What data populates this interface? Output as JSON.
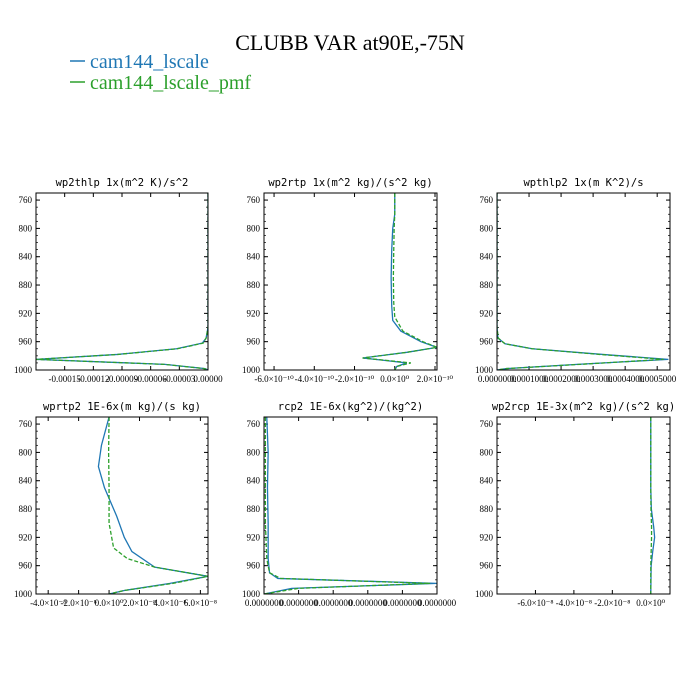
{
  "title": "CLUBB VAR at90E,-75N",
  "legend": [
    {
      "label": "cam144_lscale",
      "color": "#1f77b4"
    },
    {
      "label": "cam144_lscale_pmf",
      "color": "#2ca02c"
    }
  ],
  "chart_data": [
    {
      "type": "line",
      "title": "wp2thlp   1x(m^2 K)/s^2",
      "xlim": [
        -0.00018,
        0.0
      ],
      "xtick_values": [
        -0.00015,
        -0.00012,
        -9e-05,
        -6e-05,
        -3e-05,
        0.0
      ],
      "xtick_labels": [
        "-0.00015",
        "-0.00012",
        "-0.00009",
        "-0.00006",
        "-0.00003",
        "0.00000"
      ],
      "ylim": [
        750,
        1000
      ],
      "yticks": [
        760,
        800,
        840,
        880,
        920,
        960,
        1000
      ],
      "series": [
        {
          "name": "cam144_lscale",
          "points": [
            [
              0,
              750
            ],
            [
              0,
              900
            ],
            [
              0,
              940
            ],
            [
              -2e-06,
              955
            ],
            [
              -6e-06,
              962
            ],
            [
              -3.3e-05,
              970
            ],
            [
              -9.5e-05,
              978
            ],
            [
              -0.00018,
              985
            ],
            [
              -4.5e-05,
              992
            ],
            [
              -3e-06,
              998
            ],
            [
              0,
              1000
            ]
          ]
        },
        {
          "name": "cam144_lscale_pmf",
          "points": [
            [
              0,
              750
            ],
            [
              0,
              900
            ],
            [
              0,
              940
            ],
            [
              -2e-06,
              955
            ],
            [
              -5e-06,
              962
            ],
            [
              -3.2e-05,
              970
            ],
            [
              -9.4e-05,
              978
            ],
            [
              -0.00018,
              985
            ],
            [
              -4.6e-05,
              992
            ],
            [
              -4e-06,
              998
            ],
            [
              0,
              1000
            ]
          ]
        }
      ]
    },
    {
      "type": "line",
      "title": "wp2rtp   1x(m^2 kg)/(s^2 kg)",
      "xlim": [
        -6.5e-10,
        2.1e-10
      ],
      "xtick_values": [
        -6e-10,
        -4e-10,
        -2e-10,
        0,
        2e-10
      ],
      "xtick_labels": [
        "-6.0×10⁻¹⁰",
        "-4.0×10⁻¹⁰",
        "-2.0×10⁻¹⁰",
        "0.0×10⁰",
        "2.0×10⁻¹⁰"
      ],
      "ylim": [
        750,
        1000
      ],
      "yticks": [
        760,
        800,
        840,
        880,
        920,
        960,
        1000
      ],
      "series": [
        {
          "name": "cam144_lscale",
          "points": [
            [
              0,
              750
            ],
            [
              0,
              780
            ],
            [
              -1e-11,
              800
            ],
            [
              -1.5e-11,
              830
            ],
            [
              -1.8e-11,
              870
            ],
            [
              -1.5e-11,
              910
            ],
            [
              -1e-11,
              930
            ],
            [
              3e-11,
              945
            ],
            [
              1.3e-10,
              960
            ],
            [
              2.1e-10,
              968
            ],
            [
              6e-11,
              975
            ],
            [
              -1.6e-10,
              983
            ],
            [
              6e-11,
              990
            ],
            [
              1e-11,
              995
            ],
            [
              0,
              1000
            ]
          ]
        },
        {
          "name": "cam144_lscale_pmf",
          "points": [
            [
              0,
              750
            ],
            [
              0,
              780
            ],
            [
              -3e-12,
              800
            ],
            [
              -5e-12,
              830
            ],
            [
              -7e-12,
              870
            ],
            [
              -5e-12,
              905
            ],
            [
              0,
              925
            ],
            [
              4e-11,
              945
            ],
            [
              1.4e-10,
              960
            ],
            [
              2.1e-10,
              968
            ],
            [
              6e-11,
              975
            ],
            [
              -1.6e-10,
              983
            ],
            [
              8e-11,
              990
            ],
            [
              1e-11,
              995
            ],
            [
              0,
              1000
            ]
          ]
        }
      ]
    },
    {
      "type": "line",
      "title": "wpthlp2   1x(m K^2)/s",
      "xlim": [
        0.0,
        0.00054
      ],
      "xtick_values": [
        0.0,
        0.0001,
        0.0002,
        0.0003,
        0.0004,
        0.0005
      ],
      "xtick_labels": [
        "0.0000000",
        "0.0001000",
        "0.0002000",
        "0.0003000",
        "0.0004000",
        "0.0005000"
      ],
      "ylim": [
        750,
        1000
      ],
      "yticks": [
        760,
        800,
        840,
        880,
        920,
        960,
        1000
      ],
      "series": [
        {
          "name": "cam144_lscale",
          "points": [
            [
              0,
              750
            ],
            [
              0,
              900
            ],
            [
              0,
              940
            ],
            [
              3e-06,
              955
            ],
            [
              2.5e-05,
              963
            ],
            [
              0.00011,
              970
            ],
            [
              0.00033,
              978
            ],
            [
              0.000535,
              985
            ],
            [
              0.00025,
              992
            ],
            [
              3e-05,
              998
            ],
            [
              0,
              1000
            ]
          ]
        },
        {
          "name": "cam144_lscale_pmf",
          "points": [
            [
              0,
              750
            ],
            [
              0,
              900
            ],
            [
              0,
              940
            ],
            [
              4e-06,
              955
            ],
            [
              2.5e-05,
              963
            ],
            [
              0.00011,
              970
            ],
            [
              0.00032,
              978
            ],
            [
              0.00052,
              985
            ],
            [
              0.00026,
              992
            ],
            [
              3e-05,
              998
            ],
            [
              0,
              1000
            ]
          ]
        }
      ]
    },
    {
      "type": "line",
      "title": "wprtp2   1E-6x(m kg)/(s kg)",
      "xlim": [
        -4.8e-08,
        6.5e-08
      ],
      "xtick_values": [
        -4e-08,
        -2e-08,
        0,
        2e-08,
        4e-08,
        6e-08
      ],
      "xtick_labels": [
        "-4.0×10⁻⁸",
        "-2.0×10⁻⁸",
        "0.0×10⁰",
        "2.0×10⁻⁸",
        "4.0×10⁻⁸",
        "6.0×10⁻⁸"
      ],
      "ylim": [
        750,
        1000
      ],
      "yticks": [
        760,
        800,
        840,
        880,
        920,
        960,
        1000
      ],
      "series": [
        {
          "name": "cam144_lscale",
          "points": [
            [
              0,
              750
            ],
            [
              -5e-09,
              790
            ],
            [
              -7e-09,
              820
            ],
            [
              -3e-09,
              850
            ],
            [
              5e-09,
              890
            ],
            [
              1e-08,
              920
            ],
            [
              1.5e-08,
              940
            ],
            [
              3e-08,
              962
            ],
            [
              6.5e-08,
              975
            ],
            [
              4e-08,
              985
            ],
            [
              1e-08,
              995
            ],
            [
              0,
              1000
            ]
          ]
        },
        {
          "name": "cam144_lscale_pmf",
          "points": [
            [
              0,
              750
            ],
            [
              -3e-10,
              800
            ],
            [
              0,
              850
            ],
            [
              0,
              900
            ],
            [
              3e-09,
              935
            ],
            [
              1.2e-08,
              950
            ],
            [
              3e-08,
              962
            ],
            [
              6.5e-08,
              975
            ],
            [
              4.2e-08,
              985
            ],
            [
              1e-08,
              995
            ],
            [
              0,
              1000
            ]
          ]
        }
      ]
    },
    {
      "type": "line",
      "title": "rcp2   1E-6x(kg^2)/(kg^2)",
      "xlim": [
        0.0,
        1.25e-08
      ],
      "xtick_values": [
        0,
        2.5e-09,
        5e-09,
        7.5e-09,
        1e-08,
        1.25e-08
      ],
      "xtick_labels": [
        "0.0000000",
        "0.0000000",
        "0.0000000",
        "0.0000000",
        "0.0000000",
        "0.0000000"
      ],
      "ylim": [
        750,
        1000
      ],
      "yticks": [
        760,
        800,
        840,
        880,
        920,
        960,
        1000
      ],
      "series": [
        {
          "name": "cam144_lscale",
          "points": [
            [
              2e-10,
              750
            ],
            [
              3e-10,
              800
            ],
            [
              2.5e-10,
              850
            ],
            [
              3e-10,
              900
            ],
            [
              3e-10,
              950
            ],
            [
              4e-10,
              970
            ],
            [
              1e-09,
              978
            ],
            [
              1.25e-08,
              985
            ],
            [
              2e-09,
              992
            ],
            [
              0,
              1000
            ]
          ]
        },
        {
          "name": "cam144_lscale_pmf",
          "points": [
            [
              1e-10,
              750
            ],
            [
              1e-10,
              800
            ],
            [
              1e-10,
              850
            ],
            [
              1e-10,
              900
            ],
            [
              2e-10,
              950
            ],
            [
              4e-10,
              970
            ],
            [
              1.2e-09,
              978
            ],
            [
              1.2e-08,
              985
            ],
            [
              2.5e-09,
              992
            ],
            [
              0,
              1000
            ]
          ]
        }
      ]
    },
    {
      "type": "line",
      "title": "wp2rcp   1E-3x(m^2 kg)/(s^2 kg)",
      "xlim": [
        -8e-08,
        1e-08
      ],
      "xtick_values": [
        -6e-08,
        -4e-08,
        -2e-08,
        0
      ],
      "xtick_labels": [
        "-6.0×10⁻⁸",
        "-4.0×10⁻⁸",
        "-2.0×10⁻⁸",
        "0.0×10⁰"
      ],
      "ylim": [
        750,
        1000
      ],
      "yticks": [
        760,
        800,
        840,
        880,
        920,
        960,
        1000
      ],
      "series": [
        {
          "name": "cam144_lscale",
          "points": [
            [
              0,
              750
            ],
            [
              0,
              850
            ],
            [
              3e-10,
              880
            ],
            [
              1.5e-09,
              905
            ],
            [
              2e-09,
              920
            ],
            [
              1e-09,
              940
            ],
            [
              2e-10,
              960
            ],
            [
              0,
              1000
            ]
          ]
        },
        {
          "name": "cam144_lscale_pmf",
          "points": [
            [
              0,
              750
            ],
            [
              0,
              850
            ],
            [
              1e-10,
              880
            ],
            [
              4e-10,
              905
            ],
            [
              4e-10,
              920
            ],
            [
              2e-10,
              940
            ],
            [
              0,
              960
            ],
            [
              0,
              1000
            ]
          ]
        }
      ]
    }
  ]
}
